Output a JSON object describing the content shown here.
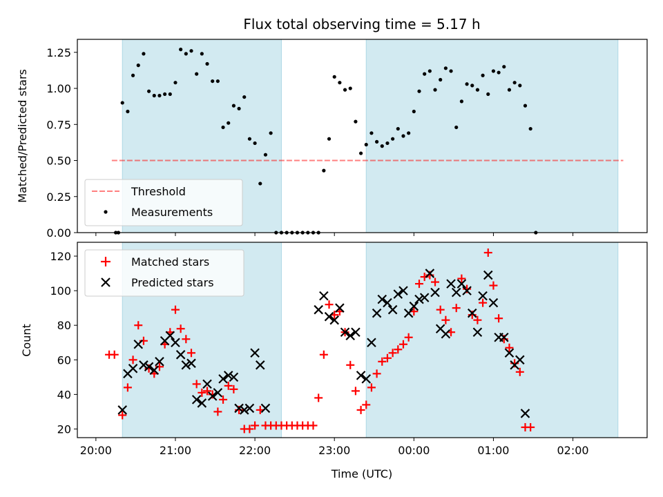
{
  "title": "Flux total observing time = 5.17 h",
  "xlabel": "Time (UTC)",
  "x_ticks": [
    "20:00",
    "21:00",
    "22:00",
    "23:00",
    "00:00",
    "01:00",
    "02:00"
  ],
  "shaded_intervals": [
    [
      "20:20",
      "22:20"
    ],
    [
      "23:24",
      "02:34"
    ]
  ],
  "colors": {
    "shade": "#add8e6",
    "threshold": "#ff0000",
    "measurements": "#000000",
    "matched": "#ff0000",
    "predicted": "#000000"
  },
  "chart_data": [
    {
      "type": "scatter",
      "ylabel": "Matched/Predicted stars",
      "ylim": [
        0,
        1.34
      ],
      "y_ticks": [
        "0.00",
        "0.25",
        "0.50",
        "0.75",
        "1.00",
        "1.25"
      ],
      "legend": {
        "placement": "lower-left",
        "entries": [
          "Threshold",
          "Measurements"
        ]
      },
      "threshold": {
        "name": "Threshold",
        "value": 0.5,
        "x_range": [
          "20:12",
          "02:38"
        ]
      },
      "series": [
        {
          "name": "Measurements",
          "points": [
            [
              "20:15",
              0.0
            ],
            [
              "20:17",
              0.0
            ],
            [
              "20:20",
              0.9
            ],
            [
              "20:24",
              0.84
            ],
            [
              "20:28",
              1.09
            ],
            [
              "20:32",
              1.16
            ],
            [
              "20:36",
              1.24
            ],
            [
              "20:40",
              0.98
            ],
            [
              "20:44",
              0.95
            ],
            [
              "20:48",
              0.95
            ],
            [
              "20:52",
              0.96
            ],
            [
              "20:56",
              0.96
            ],
            [
              "21:00",
              1.04
            ],
            [
              "21:04",
              1.27
            ],
            [
              "21:08",
              1.24
            ],
            [
              "21:12",
              1.26
            ],
            [
              "21:16",
              1.1
            ],
            [
              "21:20",
              1.24
            ],
            [
              "21:24",
              1.17
            ],
            [
              "21:28",
              1.05
            ],
            [
              "21:32",
              1.05
            ],
            [
              "21:36",
              0.73
            ],
            [
              "21:40",
              0.76
            ],
            [
              "21:44",
              0.88
            ],
            [
              "21:48",
              0.86
            ],
            [
              "21:52",
              0.94
            ],
            [
              "21:56",
              0.65
            ],
            [
              "22:00",
              0.62
            ],
            [
              "22:04",
              0.34
            ],
            [
              "22:08",
              0.54
            ],
            [
              "22:12",
              0.69
            ],
            [
              "22:16",
              0.0
            ],
            [
              "22:20",
              0.0
            ],
            [
              "22:24",
              0.0
            ],
            [
              "22:28",
              0.0
            ],
            [
              "22:32",
              0.0
            ],
            [
              "22:36",
              0.0
            ],
            [
              "22:40",
              0.0
            ],
            [
              "22:44",
              0.0
            ],
            [
              "22:48",
              0.0
            ],
            [
              "22:52",
              0.43
            ],
            [
              "22:56",
              0.65
            ],
            [
              "23:00",
              1.08
            ],
            [
              "23:04",
              1.04
            ],
            [
              "23:08",
              0.99
            ],
            [
              "23:12",
              1.0
            ],
            [
              "23:16",
              0.77
            ],
            [
              "23:20",
              0.55
            ],
            [
              "23:24",
              0.61
            ],
            [
              "23:28",
              0.69
            ],
            [
              "23:32",
              0.63
            ],
            [
              "23:36",
              0.6
            ],
            [
              "23:40",
              0.62
            ],
            [
              "23:44",
              0.65
            ],
            [
              "23:48",
              0.72
            ],
            [
              "23:52",
              0.67
            ],
            [
              "23:56",
              0.69
            ],
            [
              "00:00",
              0.84
            ],
            [
              "00:04",
              0.98
            ],
            [
              "00:08",
              1.1
            ],
            [
              "00:12",
              1.12
            ],
            [
              "00:16",
              0.99
            ],
            [
              "00:20",
              1.06
            ],
            [
              "00:24",
              1.14
            ],
            [
              "00:28",
              1.12
            ],
            [
              "00:32",
              0.73
            ],
            [
              "00:36",
              0.91
            ],
            [
              "00:40",
              1.03
            ],
            [
              "00:44",
              1.02
            ],
            [
              "00:48",
              0.99
            ],
            [
              "00:52",
              1.09
            ],
            [
              "00:56",
              0.96
            ],
            [
              "01:00",
              1.12
            ],
            [
              "01:04",
              1.11
            ],
            [
              "01:08",
              1.15
            ],
            [
              "01:12",
              0.99
            ],
            [
              "01:16",
              1.04
            ],
            [
              "01:20",
              1.02
            ],
            [
              "01:24",
              0.88
            ],
            [
              "01:28",
              0.72
            ],
            [
              "01:32",
              0.0
            ]
          ]
        }
      ]
    },
    {
      "type": "scatter",
      "ylabel": "Count",
      "ylim": [
        15,
        128
      ],
      "y_ticks": [
        "20",
        "40",
        "60",
        "80",
        "100",
        "120"
      ],
      "legend": {
        "placement": "upper-left",
        "entries": [
          "Matched stars",
          "Predicted stars"
        ]
      },
      "series": [
        {
          "name": "Matched stars",
          "marker": "plus",
          "points": [
            [
              "20:10",
              63
            ],
            [
              "20:14",
              63
            ],
            [
              "20:20",
              28
            ],
            [
              "20:24",
              44
            ],
            [
              "20:28",
              60
            ],
            [
              "20:32",
              80
            ],
            [
              "20:36",
              71
            ],
            [
              "20:40",
              55
            ],
            [
              "20:44",
              52
            ],
            [
              "20:48",
              56
            ],
            [
              "20:52",
              69
            ],
            [
              "20:56",
              76
            ],
            [
              "21:00",
              89
            ],
            [
              "21:04",
              78
            ],
            [
              "21:08",
              72
            ],
            [
              "21:12",
              64
            ],
            [
              "21:16",
              46
            ],
            [
              "21:20",
              41
            ],
            [
              "21:24",
              42
            ],
            [
              "21:28",
              40
            ],
            [
              "21:32",
              30
            ],
            [
              "21:36",
              37
            ],
            [
              "21:40",
              45
            ],
            [
              "21:44",
              43
            ],
            [
              "21:48",
              31
            ],
            [
              "21:52",
              20
            ],
            [
              "21:56",
              20
            ],
            [
              "22:00",
              22
            ],
            [
              "22:04",
              31
            ],
            [
              "22:08",
              22
            ],
            [
              "22:12",
              22
            ],
            [
              "22:16",
              22
            ],
            [
              "22:20",
              22
            ],
            [
              "22:24",
              22
            ],
            [
              "22:28",
              22
            ],
            [
              "22:32",
              22
            ],
            [
              "22:36",
              22
            ],
            [
              "22:40",
              22
            ],
            [
              "22:44",
              22
            ],
            [
              "22:48",
              38
            ],
            [
              "22:52",
              63
            ],
            [
              "22:56",
              92
            ],
            [
              "23:00",
              86
            ],
            [
              "23:04",
              88
            ],
            [
              "23:08",
              76
            ],
            [
              "23:12",
              57
            ],
            [
              "23:16",
              42
            ],
            [
              "23:20",
              31
            ],
            [
              "23:24",
              34
            ],
            [
              "23:28",
              44
            ],
            [
              "23:32",
              52
            ],
            [
              "23:36",
              59
            ],
            [
              "23:40",
              61
            ],
            [
              "23:44",
              64
            ],
            [
              "23:48",
              66
            ],
            [
              "23:52",
              69
            ],
            [
              "23:56",
              73
            ],
            [
              "00:00",
              88
            ],
            [
              "00:04",
              104
            ],
            [
              "00:08",
              108
            ],
            [
              "00:12",
              109
            ],
            [
              "00:16",
              105
            ],
            [
              "00:20",
              89
            ],
            [
              "00:24",
              83
            ],
            [
              "00:28",
              76
            ],
            [
              "00:32",
              90
            ],
            [
              "00:36",
              107
            ],
            [
              "00:40",
              101
            ],
            [
              "00:44",
              86
            ],
            [
              "00:48",
              83
            ],
            [
              "00:52",
              93
            ],
            [
              "00:56",
              122
            ],
            [
              "01:00",
              103
            ],
            [
              "01:04",
              84
            ],
            [
              "01:08",
              72
            ],
            [
              "01:12",
              67
            ],
            [
              "01:16",
              58
            ],
            [
              "01:20",
              53
            ],
            [
              "01:24",
              21
            ],
            [
              "01:28",
              21
            ]
          ]
        },
        {
          "name": "Predicted stars",
          "marker": "x",
          "points": [
            [
              "20:20",
              31
            ],
            [
              "20:24",
              52
            ],
            [
              "20:28",
              55
            ],
            [
              "20:32",
              69
            ],
            [
              "20:36",
              57
            ],
            [
              "20:40",
              56
            ],
            [
              "20:44",
              54
            ],
            [
              "20:48",
              59
            ],
            [
              "20:52",
              71
            ],
            [
              "20:56",
              74
            ],
            [
              "21:00",
              70
            ],
            [
              "21:04",
              63
            ],
            [
              "21:08",
              57
            ],
            [
              "21:12",
              58
            ],
            [
              "21:16",
              37
            ],
            [
              "21:20",
              35
            ],
            [
              "21:24",
              46
            ],
            [
              "21:28",
              39
            ],
            [
              "21:32",
              41
            ],
            [
              "21:36",
              49
            ],
            [
              "21:40",
              51
            ],
            [
              "21:44",
              50
            ],
            [
              "21:48",
              32
            ],
            [
              "21:52",
              31
            ],
            [
              "21:56",
              32
            ],
            [
              "22:00",
              64
            ],
            [
              "22:04",
              57
            ],
            [
              "22:08",
              32
            ],
            [
              "22:48",
              89
            ],
            [
              "22:52",
              97
            ],
            [
              "22:56",
              85
            ],
            [
              "23:00",
              83
            ],
            [
              "23:04",
              90
            ],
            [
              "23:08",
              76
            ],
            [
              "23:12",
              74
            ],
            [
              "23:16",
              76
            ],
            [
              "23:20",
              51
            ],
            [
              "23:24",
              49
            ],
            [
              "23:28",
              70
            ],
            [
              "23:32",
              87
            ],
            [
              "23:36",
              95
            ],
            [
              "23:40",
              93
            ],
            [
              "23:44",
              89
            ],
            [
              "23:48",
              98
            ],
            [
              "23:52",
              100
            ],
            [
              "23:56",
              87
            ],
            [
              "00:00",
              91
            ],
            [
              "00:04",
              95
            ],
            [
              "00:08",
              96
            ],
            [
              "00:12",
              110
            ],
            [
              "00:16",
              99
            ],
            [
              "00:20",
              78
            ],
            [
              "00:24",
              75
            ],
            [
              "00:28",
              104
            ],
            [
              "00:32",
              99
            ],
            [
              "00:36",
              104
            ],
            [
              "00:40",
              100
            ],
            [
              "00:44",
              87
            ],
            [
              "00:48",
              76
            ],
            [
              "00:52",
              97
            ],
            [
              "00:56",
              109
            ],
            [
              "01:00",
              93
            ],
            [
              "01:04",
              73
            ],
            [
              "01:08",
              73
            ],
            [
              "01:12",
              64
            ],
            [
              "01:16",
              57
            ],
            [
              "01:20",
              60
            ],
            [
              "01:24",
              29
            ]
          ]
        }
      ]
    }
  ]
}
